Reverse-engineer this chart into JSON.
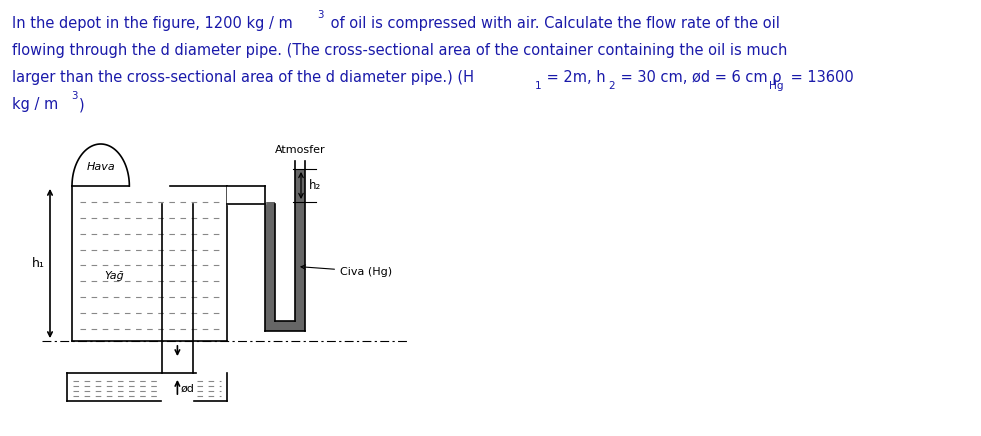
{
  "bg_color": "#ffffff",
  "title_color": "#1a1aaa",
  "diagram_color": "#000000",
  "mercury_color": "#666666",
  "dash_color": "#888888",
  "label_hava": "Hava",
  "label_yag": "Yağ",
  "label_atmosfer": "Atmosfer",
  "label_civa": "Civa (Hg)",
  "label_h1": "h₁",
  "label_h2": "h₂",
  "label_od": "ød",
  "figw": 9.81,
  "figh": 4.36,
  "dpi": 100
}
